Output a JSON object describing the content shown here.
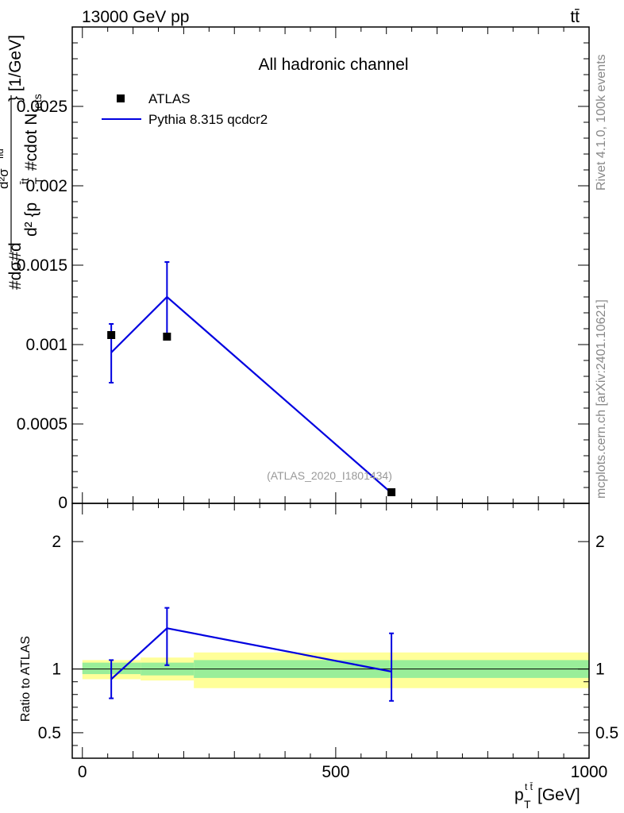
{
  "header": {
    "energy_label": "13000 GeV pp",
    "process_label": "tt̄"
  },
  "side_text": {
    "rivet": "Rivet 4.1.0,  100k events",
    "mcplots": "mcplots.cern.ch [arXiv:2401.10621]"
  },
  "chart_data": [
    {
      "type": "line",
      "title": "All hadronic channel",
      "watermark": "(ATLAS_2020_I1801434)",
      "ylabel_parts": [
        "#dσ#d",
        "d² {p",
        "T",
        "t̄t",
        "#cdot N",
        "jets",
        "} [1/GeV]",
        "d²σ",
        "fid"
      ],
      "xlim": [
        -20,
        1000
      ],
      "ylim": [
        0,
        0.003
      ],
      "yticks": [
        {
          "v": 0.0005,
          "label": "0.0005"
        },
        {
          "v": 0.001,
          "label": "0.001"
        },
        {
          "v": 0.0015,
          "label": "0.0015"
        },
        {
          "v": 0.002,
          "label": "0.002"
        },
        {
          "v": 0.0025,
          "label": "0.0025"
        }
      ],
      "ytick_zero_label": "0",
      "legend": {
        "placement": "top-left",
        "entries": [
          {
            "label": "ATLAS",
            "style": "marker",
            "color": "#000000"
          },
          {
            "label": "Pythia 8.315 qcdcr2",
            "style": "line",
            "color": "#0000e0"
          }
        ]
      },
      "series": [
        {
          "name": "ATLAS",
          "kind": "points",
          "x": [
            57,
            167,
            610
          ],
          "y": [
            0.00106,
            0.00105,
            7e-05
          ]
        },
        {
          "name": "Pythia 8.315 qcdcr2",
          "kind": "line",
          "x": [
            57,
            167,
            610
          ],
          "y": [
            0.00095,
            0.0013,
            6.5e-05
          ],
          "err_low": [
            0.00076,
            0.00106,
            6e-05
          ],
          "err_high": [
            0.00113,
            0.00152,
            7e-05
          ]
        }
      ]
    },
    {
      "type": "line",
      "ylabel": "Ratio to ATLAS",
      "xlabel_main": "p",
      "xlabel_sub": "T",
      "xlabel_sup": "t t̄",
      "xlabel_unit": " [GeV]",
      "xlim": [
        -20,
        1000
      ],
      "ylim": [
        0.3,
        2.3
      ],
      "xticks": [
        {
          "v": 0,
          "label": "0"
        },
        {
          "v": 500,
          "label": "500"
        },
        {
          "v": 1000,
          "label": "1000"
        }
      ],
      "yticks": [
        {
          "v": 0.5,
          "label": "0.5"
        },
        {
          "v": 1,
          "label": "1"
        },
        {
          "v": 2,
          "label": "2"
        }
      ],
      "bands": [
        {
          "x0": 0,
          "x1": 115,
          "inner": [
            0.96,
            1.05
          ],
          "outer": [
            0.92,
            1.07
          ]
        },
        {
          "x0": 115,
          "x1": 220,
          "inner": [
            0.95,
            1.05
          ],
          "outer": [
            0.91,
            1.09
          ]
        },
        {
          "x0": 220,
          "x1": 1000,
          "inner": [
            0.93,
            1.07
          ],
          "outer": [
            0.85,
            1.13
          ]
        }
      ],
      "band_colors": {
        "inner": "#99ee99",
        "outer": "#ffff99"
      },
      "ratio_series": {
        "name": "Pythia 8.315 qcdcr2",
        "x": [
          57,
          167,
          610
        ],
        "y": [
          0.92,
          1.32,
          0.98
        ],
        "err_low": [
          0.77,
          1.03,
          0.75
        ],
        "err_high": [
          1.07,
          1.48,
          1.28
        ]
      }
    }
  ]
}
